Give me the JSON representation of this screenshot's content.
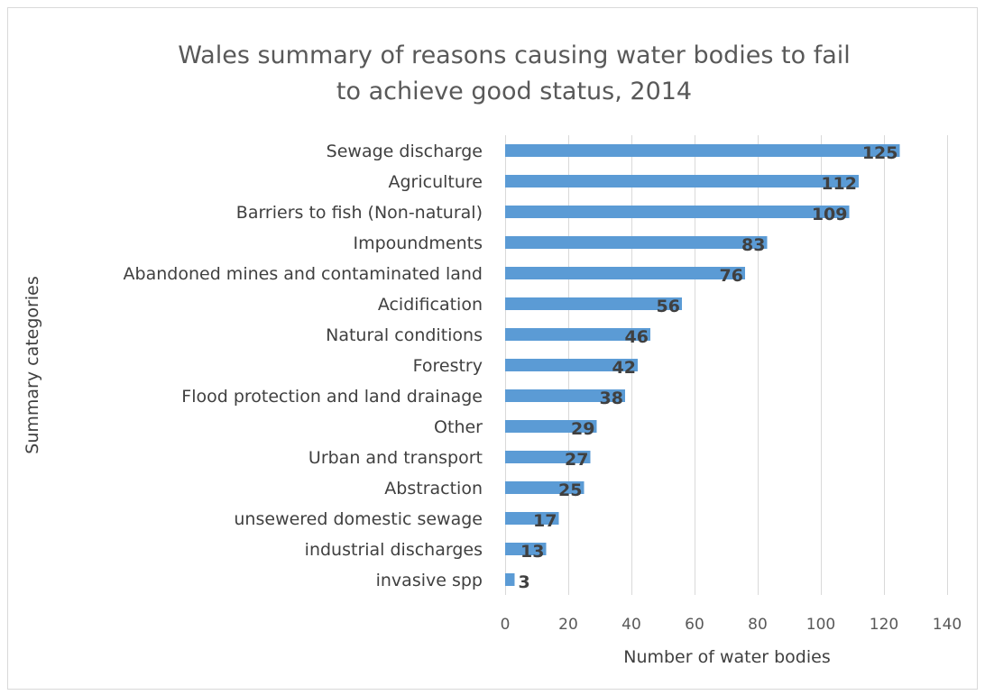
{
  "chart_data": {
    "type": "bar",
    "orientation": "horizontal",
    "title": "Wales summary of reasons causing water bodies to fail to achieve good status, 2014",
    "title_lines": [
      "Wales summary of reasons causing water bodies to fail",
      "to achieve good status, 2014"
    ],
    "xlabel": "Number of water bodies",
    "ylabel": "Summary categories",
    "categories": [
      "Sewage discharge",
      "Agriculture",
      "Barriers to fish (Non-natural)",
      "Impoundments",
      "Abandoned mines and contaminated land",
      "Acidification",
      "Natural conditions",
      "Forestry",
      "Flood protection and land drainage",
      "Other",
      "Urban and transport",
      "Abstraction",
      "unsewered domestic sewage",
      "industrial discharges",
      "invasive spp"
    ],
    "values": [
      125,
      112,
      109,
      83,
      76,
      56,
      46,
      42,
      38,
      29,
      27,
      25,
      17,
      13,
      3
    ],
    "xlim": [
      0,
      140
    ],
    "xticks": [
      0,
      20,
      40,
      60,
      80,
      100,
      120,
      140
    ],
    "grid": "vertical",
    "legend": "none",
    "bar_color": "#5b9bd5"
  }
}
